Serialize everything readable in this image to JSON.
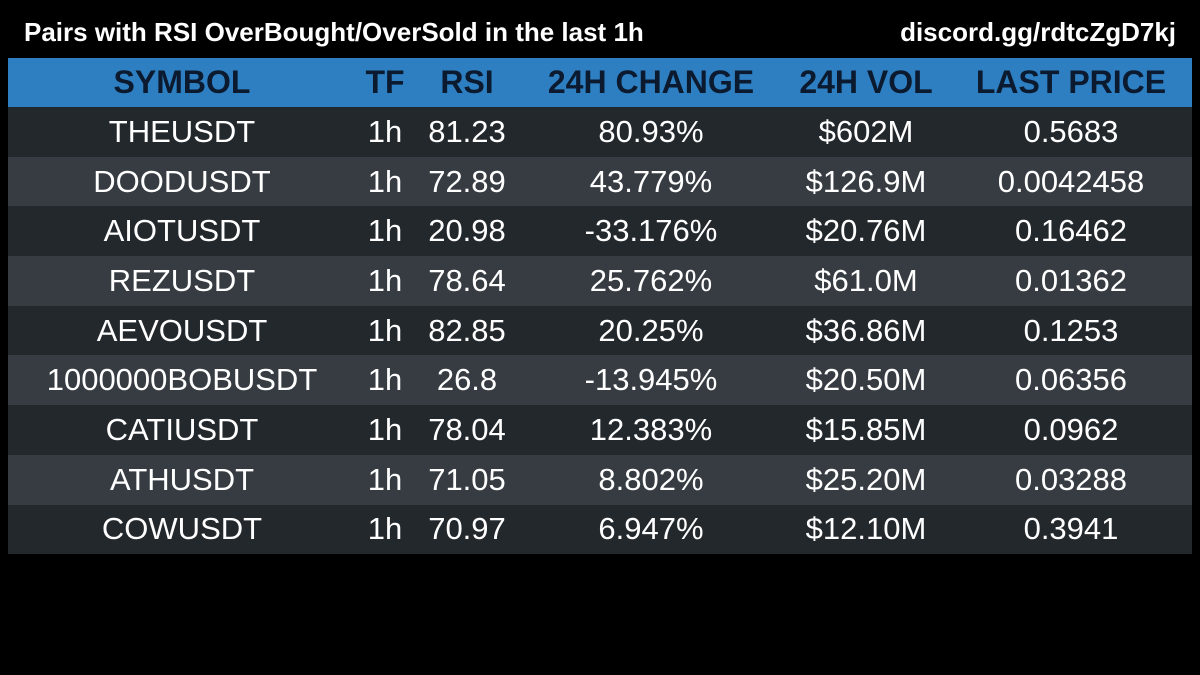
{
  "header": {
    "title": "Pairs with RSI OverBought/OverSold in the last 1h",
    "link": "discord.gg/rdtcZgD7kj"
  },
  "table": {
    "columns": [
      "SYMBOL",
      "TF",
      "RSI",
      "24H CHANGE",
      "24H VOL",
      "LAST PRICE"
    ],
    "rows": [
      {
        "symbol": "THEUSDT",
        "tf": "1h",
        "rsi": "81.23",
        "change": "80.93%",
        "vol": "$602M",
        "price": "0.5683"
      },
      {
        "symbol": "DOODUSDT",
        "tf": "1h",
        "rsi": "72.89",
        "change": "43.779%",
        "vol": "$126.9M",
        "price": "0.0042458"
      },
      {
        "symbol": "AIOTUSDT",
        "tf": "1h",
        "rsi": "20.98",
        "change": "-33.176%",
        "vol": "$20.76M",
        "price": "0.16462"
      },
      {
        "symbol": "REZUSDT",
        "tf": "1h",
        "rsi": "78.64",
        "change": "25.762%",
        "vol": "$61.0M",
        "price": "0.01362"
      },
      {
        "symbol": "AEVOUSDT",
        "tf": "1h",
        "rsi": "82.85",
        "change": "20.25%",
        "vol": "$36.86M",
        "price": "0.1253"
      },
      {
        "symbol": "1000000BOBUSDT",
        "tf": "1h",
        "rsi": "26.8",
        "change": "-13.945%",
        "vol": "$20.50M",
        "price": "0.06356"
      },
      {
        "symbol": "CATIUSDT",
        "tf": "1h",
        "rsi": "78.04",
        "change": "12.383%",
        "vol": "$15.85M",
        "price": "0.0962"
      },
      {
        "symbol": "ATHUSDT",
        "tf": "1h",
        "rsi": "71.05",
        "change": "8.802%",
        "vol": "$25.20M",
        "price": "0.03288"
      },
      {
        "symbol": "COWUSDT",
        "tf": "1h",
        "rsi": "70.97",
        "change": "6.947%",
        "vol": "$12.10M",
        "price": "0.3941"
      }
    ]
  },
  "colors": {
    "background": "#000000",
    "header_row": "#2e7fc1",
    "header_text": "#0b1a2e",
    "row_odd": "#23282d",
    "row_even": "#363c42",
    "text": "#ffffff"
  }
}
